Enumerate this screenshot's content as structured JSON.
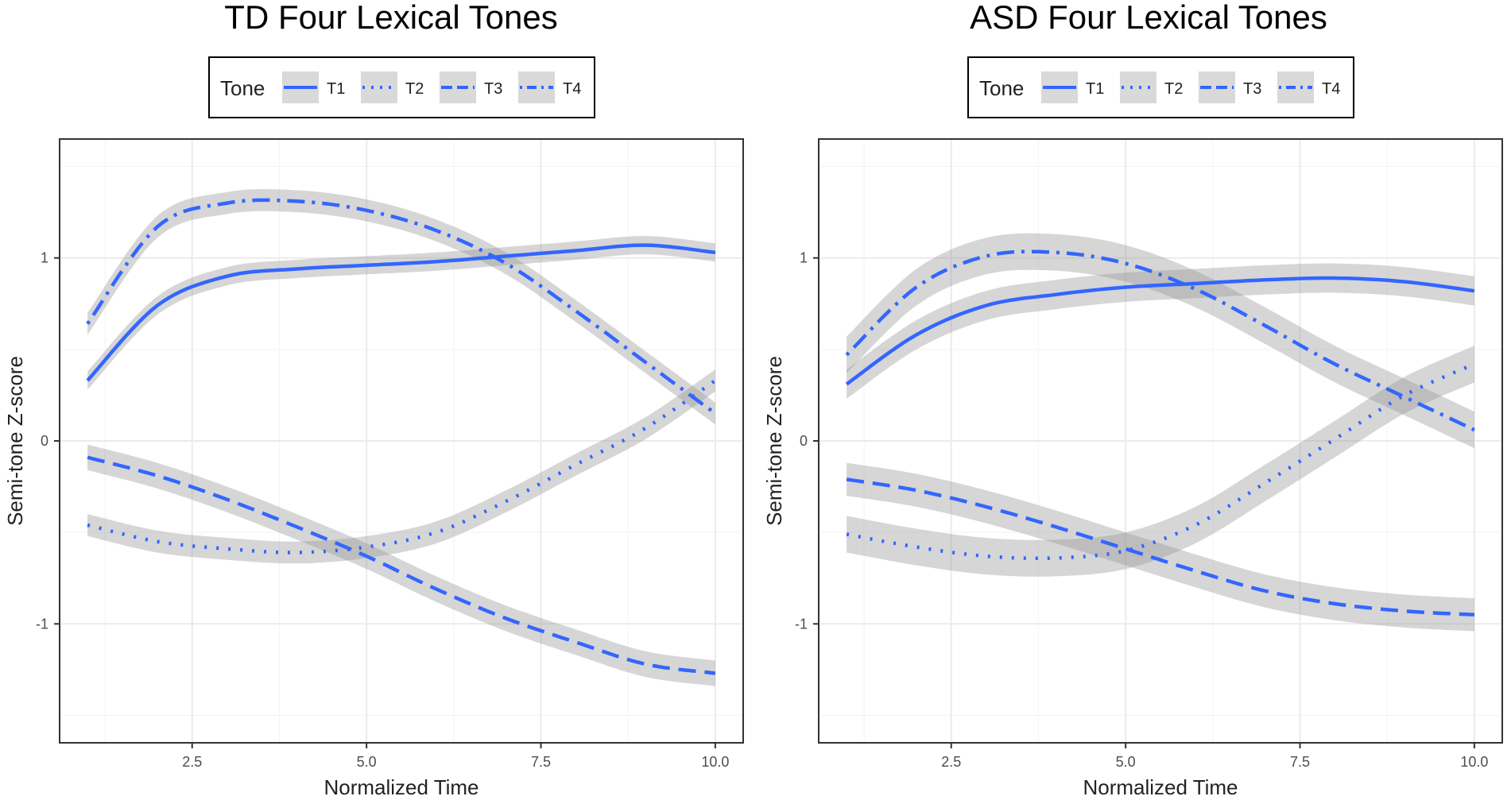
{
  "chart_data": [
    {
      "type": "line",
      "title": "TD Four Lexical Tones",
      "xlabel": "Normalized Time",
      "ylabel": "Semi-tone Z-score",
      "xlim": [
        0.6,
        10.4
      ],
      "ylim": [
        -1.65,
        1.65
      ],
      "xticks": [
        2.5,
        5.0,
        7.5,
        10.0
      ],
      "xtick_labels": [
        "2.5",
        "5.0",
        "7.5",
        "10.0"
      ],
      "yticks": [
        -1,
        0,
        1
      ],
      "ytick_labels": [
        "-1",
        "0",
        "1"
      ],
      "grid": true,
      "legend": {
        "title": "Tone",
        "position": "top"
      },
      "x": [
        1,
        2,
        3,
        4,
        5,
        6,
        7,
        8,
        9,
        10
      ],
      "series": [
        {
          "name": "T1",
          "dash": "solid",
          "values": [
            0.33,
            0.74,
            0.9,
            0.94,
            0.96,
            0.98,
            1.01,
            1.04,
            1.07,
            1.03
          ],
          "band": 0.05
        },
        {
          "name": "T2",
          "dash": "dotted",
          "values": [
            -0.46,
            -0.55,
            -0.59,
            -0.61,
            -0.58,
            -0.5,
            -0.33,
            -0.13,
            0.07,
            0.33
          ],
          "band": 0.06
        },
        {
          "name": "T3",
          "dash": "longdash",
          "values": [
            -0.09,
            -0.19,
            -0.32,
            -0.47,
            -0.63,
            -0.81,
            -0.97,
            -1.1,
            -1.22,
            -1.27
          ],
          "band": 0.07
        },
        {
          "name": "T4",
          "dash": "dotdash",
          "values": [
            0.64,
            1.17,
            1.3,
            1.31,
            1.26,
            1.15,
            0.97,
            0.71,
            0.43,
            0.15
          ],
          "band": 0.06
        }
      ]
    },
    {
      "type": "line",
      "title": "ASD Four Lexical Tones",
      "xlabel": "Normalized Time",
      "ylabel": "Semi-tone Z-score",
      "xlim": [
        0.6,
        10.4
      ],
      "ylim": [
        -1.65,
        1.65
      ],
      "xticks": [
        2.5,
        5.0,
        7.5,
        10.0
      ],
      "xtick_labels": [
        "2.5",
        "5.0",
        "7.5",
        "10.0"
      ],
      "yticks": [
        -1,
        0,
        1
      ],
      "ytick_labels": [
        "-1",
        "0",
        "1"
      ],
      "grid": true,
      "legend": {
        "title": "Tone",
        "position": "top"
      },
      "x": [
        1,
        2,
        3,
        4,
        5,
        6,
        7,
        8,
        9,
        10
      ],
      "series": [
        {
          "name": "T1",
          "dash": "solid",
          "values": [
            0.31,
            0.58,
            0.74,
            0.8,
            0.84,
            0.86,
            0.88,
            0.89,
            0.87,
            0.82
          ],
          "band": 0.08
        },
        {
          "name": "T2",
          "dash": "dotted",
          "values": [
            -0.51,
            -0.58,
            -0.63,
            -0.64,
            -0.6,
            -0.46,
            -0.23,
            0.01,
            0.25,
            0.42
          ],
          "band": 0.1
        },
        {
          "name": "T3",
          "dash": "longdash",
          "values": [
            -0.21,
            -0.27,
            -0.36,
            -0.47,
            -0.59,
            -0.71,
            -0.82,
            -0.89,
            -0.93,
            -0.95
          ],
          "band": 0.09
        },
        {
          "name": "T4",
          "dash": "dotdash",
          "values": [
            0.47,
            0.84,
            1.01,
            1.03,
            0.97,
            0.83,
            0.63,
            0.42,
            0.24,
            0.06
          ],
          "band": 0.1
        }
      ]
    }
  ],
  "legend_items": [
    {
      "label": "T1",
      "dash": "solid"
    },
    {
      "label": "T2",
      "dash": "dotted"
    },
    {
      "label": "T3",
      "dash": "longdash"
    },
    {
      "label": "T4",
      "dash": "dotdash"
    }
  ],
  "colors": {
    "line": "#3366ff",
    "band": "#999999",
    "grid": "#ebebeb",
    "frame": "#333333"
  }
}
